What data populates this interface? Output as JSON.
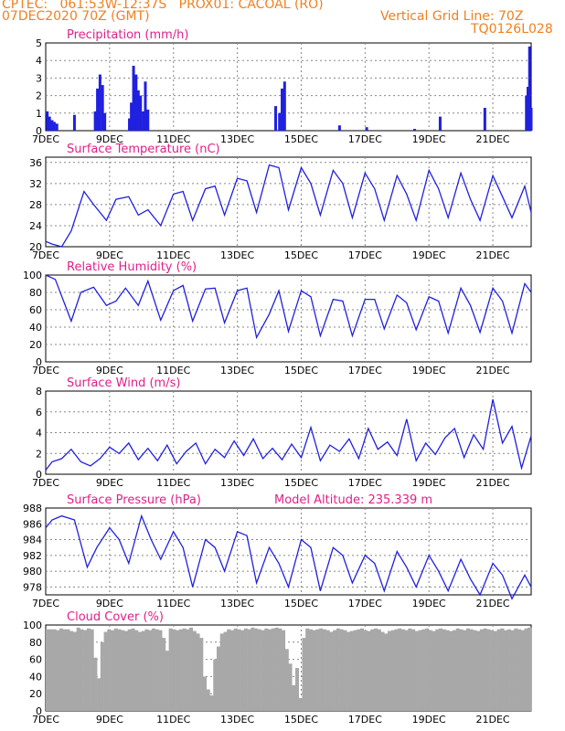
{
  "header": {
    "line1": "CPTEC:   061:53W-12:37S   PROX01: CACOAL (RO)",
    "line2": "07DEC2020 70Z (GMT)",
    "vgrid": "Vertical Grid Line: 70Z",
    "code": "TQ0126L028"
  },
  "colors": {
    "header": "#f08020",
    "title": "#e0208a",
    "line": "#2020e0",
    "cloud": "#a8a8a8",
    "grid": "#888888"
  },
  "chart_data": [
    {
      "type": "bar",
      "title": "Precipitation (mm/h)",
      "ylim": [
        0,
        5
      ],
      "yticks": [
        0,
        1,
        2,
        3,
        4,
        5
      ],
      "x_ticks": [
        "7DEC",
        "9DEC",
        "11DEC",
        "13DEC",
        "15DEC",
        "17DEC",
        "19DEC",
        "21DEC"
      ],
      "x_range_days": [
        0,
        15.2
      ],
      "series": [
        {
          "x": [
            0.05,
            0.12,
            0.2,
            0.27,
            0.35,
            0.9,
            1.55,
            1.62,
            1.7,
            1.78,
            1.85,
            2.62,
            2.68,
            2.75,
            2.83,
            2.9,
            2.97,
            3.05,
            3.12,
            3.2,
            7.2,
            7.32,
            7.4,
            7.48,
            9.2,
            10.05,
            11.55,
            12.35,
            13.75,
            15.05,
            15.1,
            15.15,
            15.2
          ],
          "values": [
            1.1,
            0.8,
            0.6,
            0.5,
            0.4,
            0.9,
            1.1,
            2.4,
            3.2,
            2.6,
            1.0,
            0.7,
            1.6,
            3.7,
            3.2,
            2.3,
            2.0,
            1.1,
            2.8,
            1.2,
            1.4,
            1.0,
            2.4,
            2.8,
            0.3,
            0.2,
            0.1,
            0.8,
            1.3,
            2.0,
            2.5,
            4.8,
            1.3
          ]
        }
      ]
    },
    {
      "type": "line",
      "title": "Surface Temperature (nC)",
      "ylim": [
        20,
        37
      ],
      "yticks": [
        20,
        24,
        28,
        32,
        36
      ],
      "series": [
        {
          "x": [
            0,
            0.2,
            0.5,
            0.8,
            1.2,
            1.5,
            1.9,
            2.2,
            2.6,
            2.9,
            3.2,
            3.6,
            4,
            4.3,
            4.6,
            5,
            5.3,
            5.6,
            6,
            6.3,
            6.6,
            7,
            7.3,
            7.6,
            8,
            8.3,
            8.6,
            9,
            9.3,
            9.6,
            10,
            10.3,
            10.6,
            11,
            11.3,
            11.6,
            12,
            12.3,
            12.6,
            13,
            13.3,
            13.6,
            14,
            14.3,
            14.6,
            15,
            15.2
          ],
          "values": [
            21,
            20.5,
            20,
            23,
            30.5,
            28,
            25,
            29,
            29.5,
            26,
            27,
            24,
            30,
            30.5,
            25,
            31,
            31.5,
            26,
            33,
            32.5,
            26.5,
            35.5,
            35,
            27,
            35,
            32,
            26,
            34.5,
            32,
            25.5,
            34,
            31,
            25,
            33.5,
            30,
            25,
            34.5,
            31,
            25.5,
            34,
            29,
            25,
            33.5,
            29.5,
            25.5,
            31.5,
            26.5
          ]
        }
      ]
    },
    {
      "type": "line",
      "title": "Relative Humidity (%)",
      "ylim": [
        0,
        100
      ],
      "yticks": [
        0,
        20,
        40,
        60,
        80,
        100
      ],
      "series": [
        {
          "x": [
            0,
            0.3,
            0.8,
            1.1,
            1.5,
            1.9,
            2.2,
            2.5,
            2.9,
            3.2,
            3.6,
            4,
            4.3,
            4.6,
            5,
            5.3,
            5.6,
            6,
            6.3,
            6.6,
            7,
            7.3,
            7.6,
            8,
            8.3,
            8.6,
            9,
            9.3,
            9.6,
            10,
            10.3,
            10.6,
            11,
            11.3,
            11.6,
            12,
            12.3,
            12.6,
            13,
            13.3,
            13.6,
            14,
            14.3,
            14.6,
            15,
            15.2
          ],
          "values": [
            100,
            95,
            47,
            80,
            86,
            65,
            70,
            85,
            65,
            93,
            48,
            82,
            88,
            47,
            84,
            85,
            45,
            82,
            85,
            28,
            55,
            82,
            35,
            82,
            75,
            30,
            72,
            70,
            30,
            72,
            72,
            38,
            77,
            68,
            37,
            75,
            70,
            33,
            85,
            65,
            34,
            85,
            70,
            33,
            90,
            80
          ]
        }
      ]
    },
    {
      "type": "line",
      "title": "Surface Wind (m/s)",
      "ylim": [
        0,
        8
      ],
      "yticks": [
        0,
        2,
        4,
        6,
        8
      ],
      "series": [
        {
          "x": [
            0,
            0.2,
            0.5,
            0.8,
            1.1,
            1.4,
            1.7,
            2,
            2.3,
            2.6,
            2.9,
            3.2,
            3.5,
            3.8,
            4.1,
            4.4,
            4.7,
            5,
            5.3,
            5.6,
            5.9,
            6.2,
            6.5,
            6.8,
            7.1,
            7.4,
            7.7,
            8,
            8.3,
            8.6,
            8.9,
            9.2,
            9.5,
            9.8,
            10.1,
            10.4,
            10.7,
            11,
            11.3,
            11.6,
            11.9,
            12.2,
            12.5,
            12.8,
            13.1,
            13.4,
            13.7,
            14,
            14.3,
            14.6,
            14.9,
            15.2
          ],
          "values": [
            0.4,
            1.2,
            1.5,
            2.4,
            1.2,
            0.8,
            1.5,
            2.6,
            2.0,
            3.0,
            1.4,
            2.5,
            1.3,
            2.8,
            1.0,
            2.2,
            3.0,
            1.0,
            2.4,
            1.6,
            3.2,
            1.8,
            3.4,
            1.5,
            2.5,
            1.4,
            2.9,
            1.6,
            4.5,
            1.3,
            2.8,
            2.2,
            3.4,
            1.5,
            4.4,
            2.4,
            3.1,
            1.8,
            5.3,
            1.3,
            3.0,
            1.9,
            3.5,
            4.4,
            1.6,
            3.8,
            2.4,
            7.2,
            3.0,
            4.6,
            0.6,
            3.7
          ]
        }
      ]
    },
    {
      "type": "line",
      "title": "Surface Pressure (hPa)",
      "annotation": "Model Altitude: 235.339 m",
      "ylim": [
        977,
        988
      ],
      "yticks": [
        978,
        980,
        982,
        984,
        986,
        988
      ],
      "series": [
        {
          "x": [
            0,
            0.2,
            0.5,
            0.9,
            1.3,
            1.6,
            2,
            2.3,
            2.6,
            3,
            3.3,
            3.6,
            4,
            4.3,
            4.6,
            5,
            5.3,
            5.6,
            6,
            6.3,
            6.6,
            7,
            7.3,
            7.6,
            8,
            8.3,
            8.6,
            9,
            9.3,
            9.6,
            10,
            10.3,
            10.6,
            11,
            11.3,
            11.6,
            12,
            12.3,
            12.6,
            13,
            13.3,
            13.6,
            14,
            14.3,
            14.6,
            15,
            15.2
          ],
          "values": [
            985.5,
            986.5,
            987,
            986.5,
            980.5,
            983,
            985.5,
            984,
            981,
            987,
            984,
            981.5,
            985,
            983,
            978,
            984,
            983,
            980,
            985,
            984.5,
            978.5,
            983,
            981,
            978,
            984,
            983,
            977.5,
            983,
            982,
            978.5,
            982,
            981,
            977.5,
            982.5,
            980.5,
            978,
            982,
            980,
            977.5,
            981.5,
            979,
            977,
            981,
            979.5,
            976.5,
            979.5,
            978
          ]
        }
      ]
    },
    {
      "type": "bar",
      "title": "Cloud Cover (%)",
      "ylim": [
        0,
        100
      ],
      "yticks": [
        0,
        20,
        40,
        60,
        80,
        100
      ],
      "series": [
        {
          "values": [
            95,
            95,
            95,
            94,
            96,
            95,
            95,
            93,
            92,
            97,
            95,
            94,
            96,
            95,
            62,
            38,
            80,
            92,
            95,
            94,
            96,
            95,
            94,
            93,
            95,
            96,
            94,
            92,
            93,
            95,
            94,
            96,
            95,
            94,
            85,
            70,
            96,
            95,
            94,
            95,
            96,
            95,
            97,
            93,
            90,
            85,
            40,
            25,
            18,
            60,
            75,
            90,
            92,
            95,
            94,
            96,
            95,
            94,
            96,
            95,
            97,
            96,
            95,
            94,
            96,
            95,
            96,
            97,
            96,
            94,
            72,
            55,
            30,
            50,
            15,
            85,
            96,
            95,
            94,
            95,
            96,
            95,
            94,
            92,
            94,
            96,
            95,
            94,
            92,
            93,
            94,
            95,
            96,
            94,
            93,
            95,
            96,
            95,
            92,
            90,
            93,
            94,
            95,
            96,
            95,
            94,
            96,
            95,
            93,
            94,
            95,
            96,
            94,
            93,
            95,
            96,
            95,
            94,
            93,
            94,
            96,
            95,
            94,
            96,
            95,
            94,
            93,
            95,
            96,
            95,
            94,
            93,
            95,
            96,
            94,
            95,
            94,
            96,
            95,
            94,
            96,
            97
          ]
        }
      ]
    }
  ]
}
